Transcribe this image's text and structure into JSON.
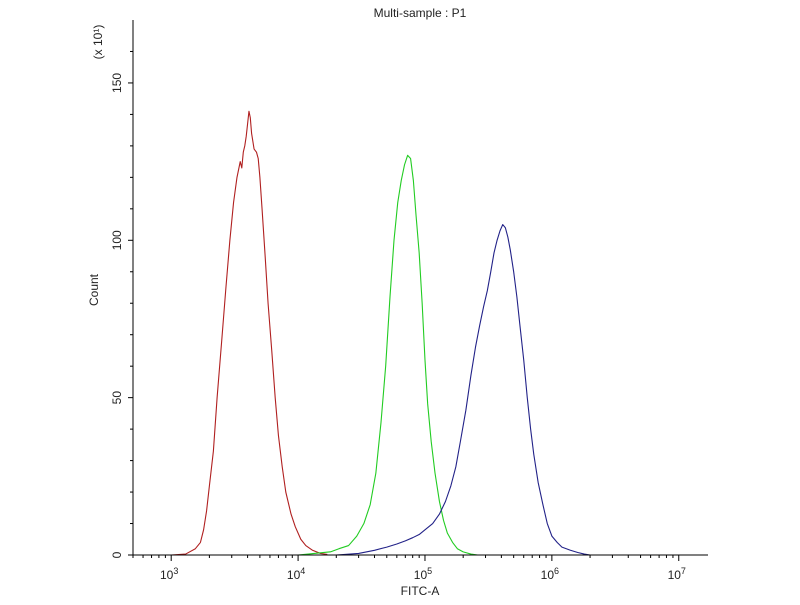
{
  "chart_data": {
    "type": "line",
    "title": "Multi-sample : P1",
    "xlabel": "FITC-A",
    "ylabel": "Count",
    "y_multiplier": "(x 10¹)",
    "x_scale": "log",
    "xlim": [
      500,
      17000000
    ],
    "ylim": [
      0,
      170
    ],
    "x_ticks": [
      {
        "value": 1000,
        "base": "10",
        "exp": "3"
      },
      {
        "value": 10000,
        "base": "10",
        "exp": "4"
      },
      {
        "value": 100000,
        "base": "10",
        "exp": "5"
      },
      {
        "value": 1000000,
        "base": "10",
        "exp": "6"
      },
      {
        "value": 10000000,
        "base": "10",
        "exp": "7"
      }
    ],
    "y_ticks": [
      {
        "value": 0,
        "label": "0"
      },
      {
        "value": 50,
        "label": "50"
      },
      {
        "value": 100,
        "label": "100"
      },
      {
        "value": 150,
        "label": "150"
      }
    ],
    "grid": false,
    "legend": "none",
    "series": [
      {
        "color": "#b02020",
        "points": [
          [
            1000,
            0
          ],
          [
            1300,
            0.3
          ],
          [
            1550,
            2
          ],
          [
            1700,
            4
          ],
          [
            1800,
            8
          ],
          [
            1900,
            14
          ],
          [
            2000,
            22
          ],
          [
            2150,
            33
          ],
          [
            2300,
            50
          ],
          [
            2500,
            68
          ],
          [
            2700,
            85
          ],
          [
            2900,
            100
          ],
          [
            3100,
            112
          ],
          [
            3300,
            120
          ],
          [
            3500,
            125
          ],
          [
            3600,
            123
          ],
          [
            3700,
            128
          ],
          [
            3800,
            130
          ],
          [
            3900,
            133
          ],
          [
            4000,
            137
          ],
          [
            4100,
            141
          ],
          [
            4200,
            139
          ],
          [
            4300,
            134
          ],
          [
            4500,
            129
          ],
          [
            4700,
            128
          ],
          [
            4850,
            126
          ],
          [
            5000,
            120
          ],
          [
            5200,
            110
          ],
          [
            5500,
            95
          ],
          [
            5800,
            80
          ],
          [
            6200,
            65
          ],
          [
            6600,
            50
          ],
          [
            7000,
            38
          ],
          [
            7500,
            28
          ],
          [
            8000,
            20
          ],
          [
            8800,
            13
          ],
          [
            9500,
            9
          ],
          [
            10500,
            5
          ],
          [
            11500,
            3
          ],
          [
            13000,
            1.5
          ],
          [
            15000,
            0.5
          ],
          [
            17000,
            0.2
          ]
        ]
      },
      {
        "color": "#22cc22",
        "points": [
          [
            10000,
            0
          ],
          [
            12000,
            0.3
          ],
          [
            15000,
            0.7
          ],
          [
            18000,
            1
          ],
          [
            21000,
            2
          ],
          [
            25000,
            3
          ],
          [
            29000,
            6
          ],
          [
            33000,
            10
          ],
          [
            37000,
            16
          ],
          [
            41000,
            26
          ],
          [
            45000,
            42
          ],
          [
            49000,
            60
          ],
          [
            53000,
            82
          ],
          [
            57000,
            100
          ],
          [
            61000,
            112
          ],
          [
            65000,
            119
          ],
          [
            69000,
            124
          ],
          [
            73000,
            127
          ],
          [
            77000,
            126
          ],
          [
            81000,
            119
          ],
          [
            85000,
            108
          ],
          [
            90000,
            96
          ],
          [
            95000,
            80
          ],
          [
            100000,
            62
          ],
          [
            105000,
            48
          ],
          [
            112000,
            36
          ],
          [
            120000,
            26
          ],
          [
            130000,
            17
          ],
          [
            140000,
            11
          ],
          [
            150000,
            7
          ],
          [
            165000,
            4
          ],
          [
            180000,
            2
          ],
          [
            200000,
            1
          ],
          [
            230000,
            0.3
          ],
          [
            260000,
            0
          ]
        ]
      },
      {
        "color": "#222288",
        "points": [
          [
            20000,
            0
          ],
          [
            30000,
            0.5
          ],
          [
            40000,
            1.5
          ],
          [
            50000,
            2.5
          ],
          [
            60000,
            3.5
          ],
          [
            70000,
            4.5
          ],
          [
            80000,
            5.5
          ],
          [
            90000,
            6.5
          ],
          [
            100000,
            8
          ],
          [
            115000,
            10
          ],
          [
            130000,
            13
          ],
          [
            145000,
            17
          ],
          [
            160000,
            22
          ],
          [
            175000,
            28
          ],
          [
            190000,
            36
          ],
          [
            210000,
            46
          ],
          [
            230000,
            57
          ],
          [
            250000,
            66
          ],
          [
            270000,
            73
          ],
          [
            290000,
            79
          ],
          [
            310000,
            84
          ],
          [
            330000,
            90
          ],
          [
            350000,
            96
          ],
          [
            370000,
            100
          ],
          [
            390000,
            103
          ],
          [
            410000,
            105
          ],
          [
            430000,
            104
          ],
          [
            450000,
            101
          ],
          [
            470000,
            97
          ],
          [
            500000,
            90
          ],
          [
            530000,
            82
          ],
          [
            560000,
            73
          ],
          [
            600000,
            62
          ],
          [
            640000,
            50
          ],
          [
            680000,
            40
          ],
          [
            720000,
            32
          ],
          [
            780000,
            23
          ],
          [
            850000,
            16
          ],
          [
            920000,
            10
          ],
          [
            1000000,
            6
          ],
          [
            1100000,
            4
          ],
          [
            1200000,
            2.5
          ],
          [
            1400000,
            1.5
          ],
          [
            1600000,
            0.8
          ],
          [
            1800000,
            0.3
          ],
          [
            2000000,
            0
          ]
        ]
      }
    ]
  }
}
